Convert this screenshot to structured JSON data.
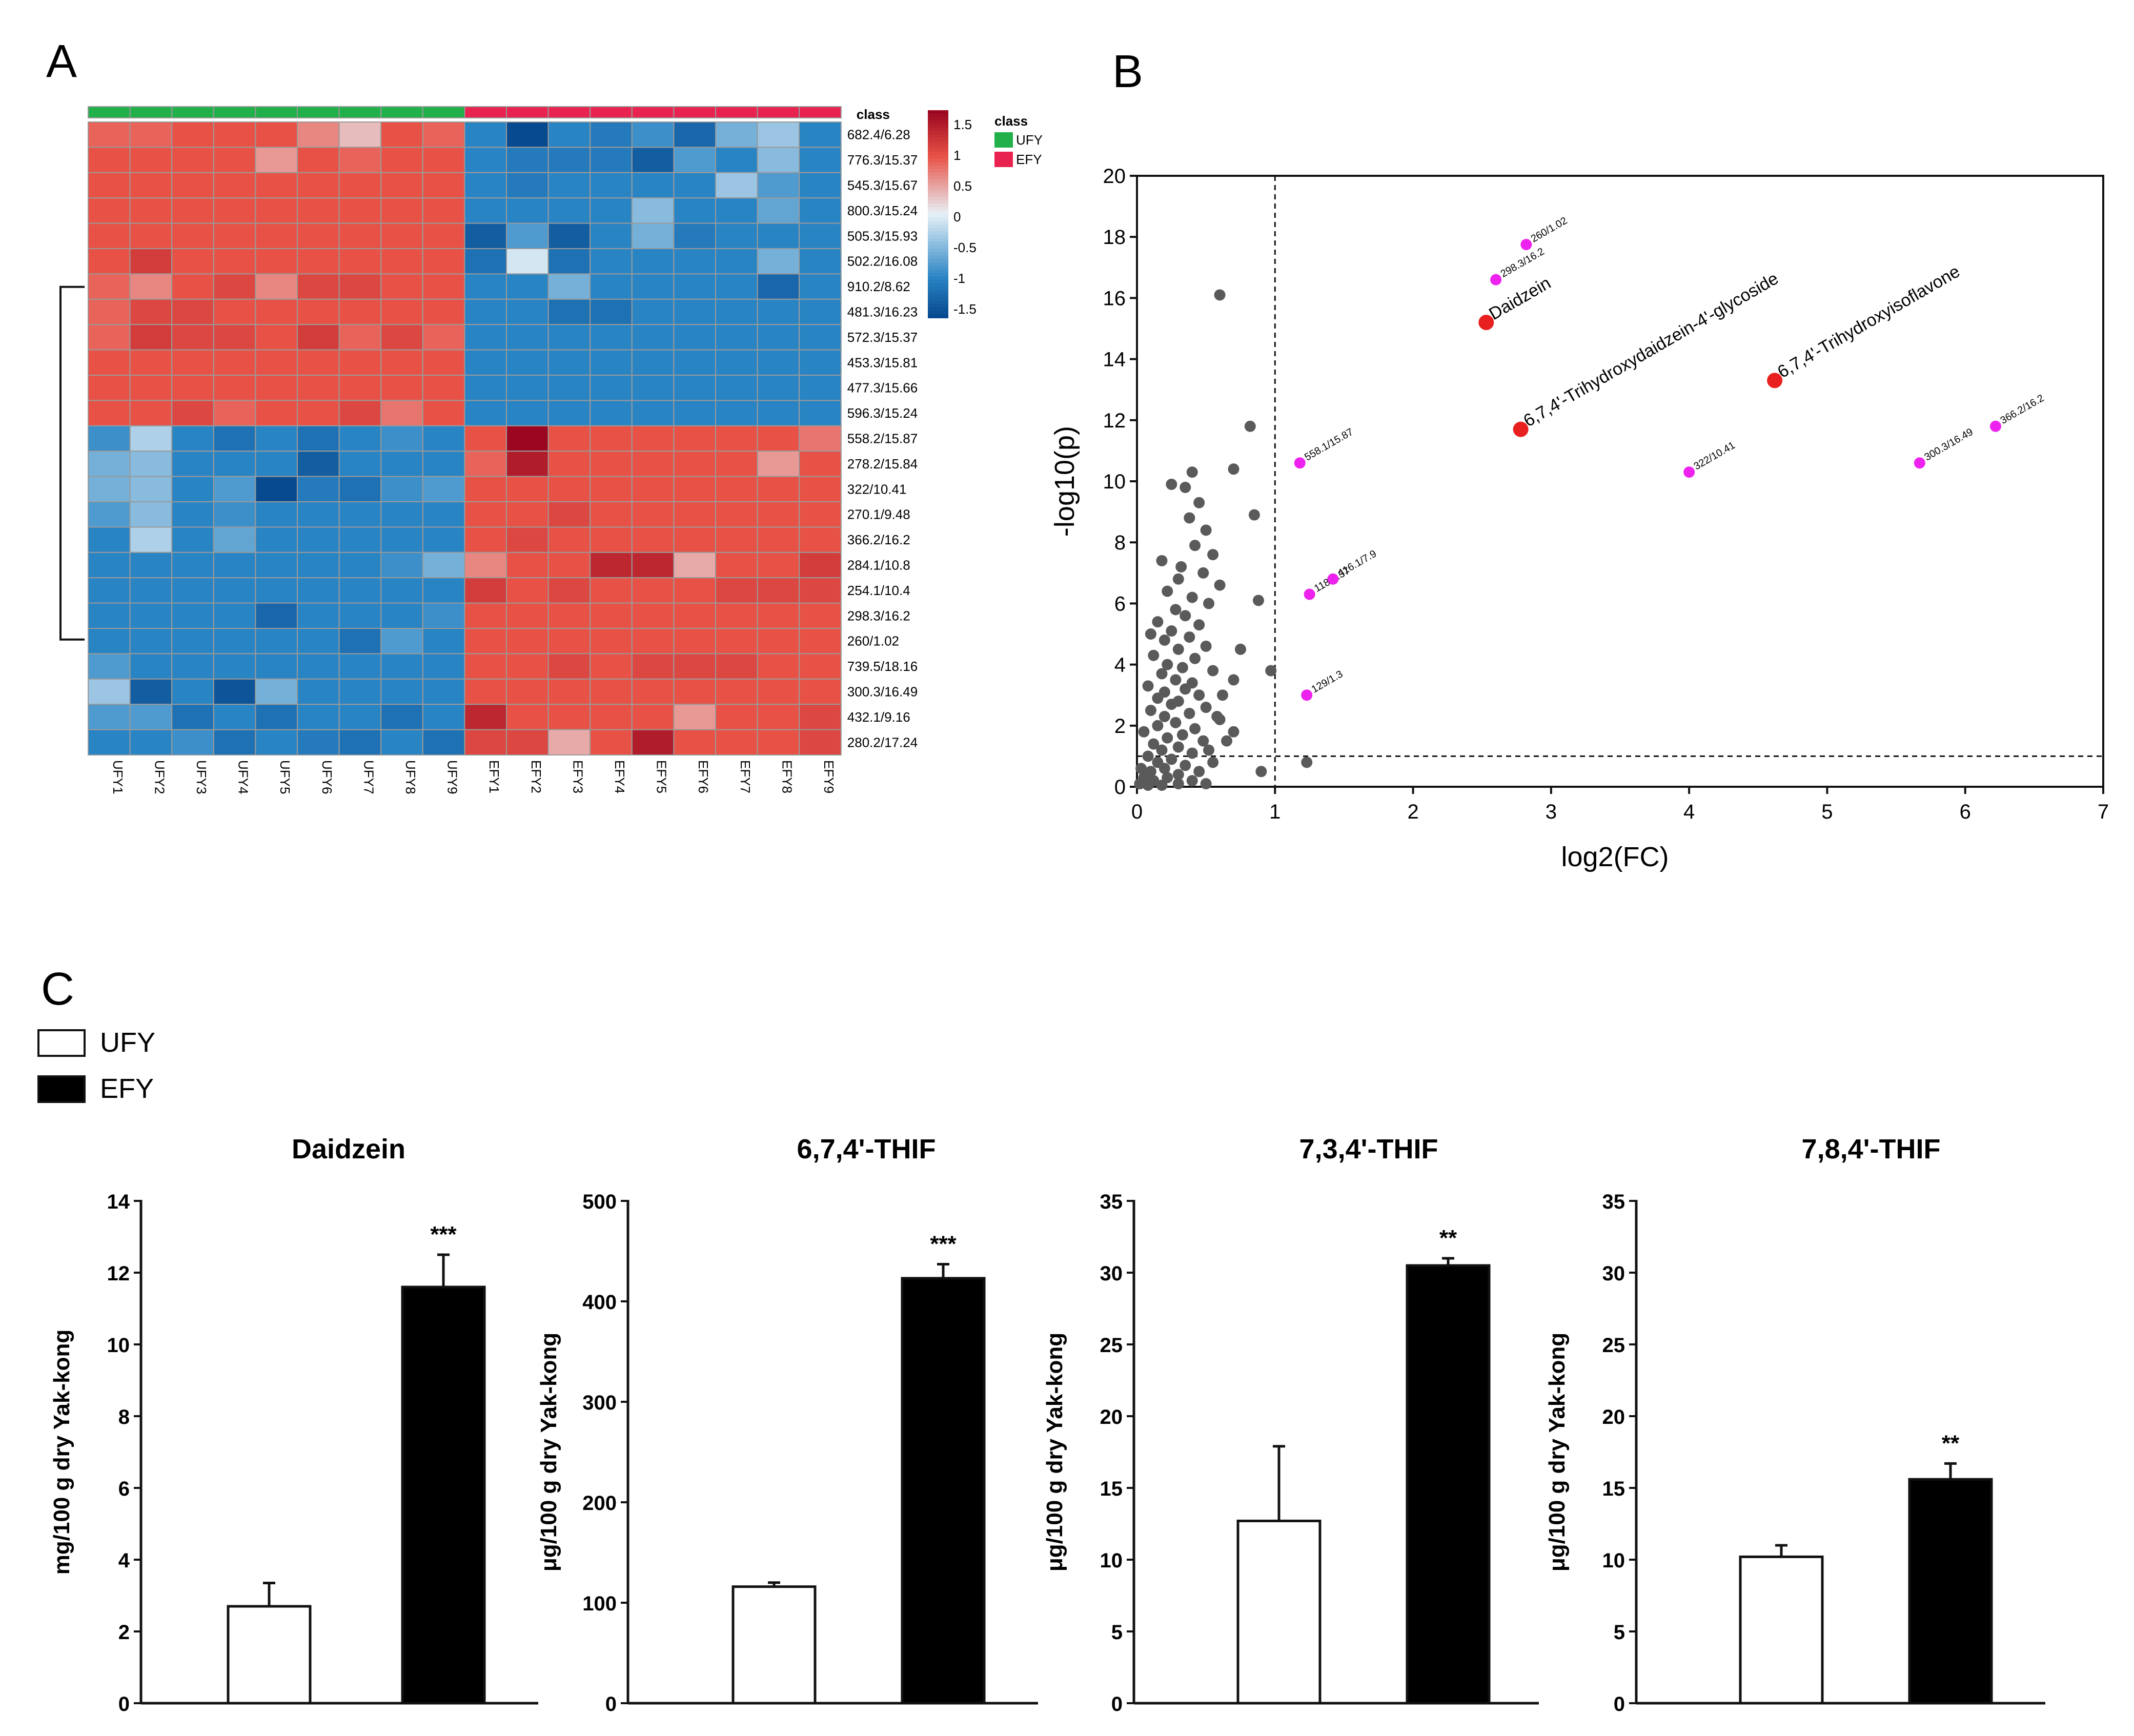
{
  "panels": {
    "a": "A",
    "b": "B",
    "c": "C"
  },
  "colors": {
    "ufy": "#22b04a",
    "efy": "#e8234f",
    "heat_low": "#084a8f",
    "heat_mid": "#e7f1f7",
    "heat_high": "#9b0720",
    "volcano_grey": "#5a5a5a",
    "volcano_magenta": "#ee22ee",
    "volcano_red": "#e8201f"
  },
  "chart_data": [
    {
      "type": "heatmap",
      "panel": "A",
      "class_label": "class",
      "legend_title": "class",
      "legend_items": [
        "UFY",
        "EFY"
      ],
      "colorbar_ticks": [
        "1.5",
        "1",
        "0.5",
        "0",
        "-0.5",
        "-1",
        "-1.5"
      ],
      "columns": [
        "UFY1",
        "UFY2",
        "UFY3",
        "UFY4",
        "UFY5",
        "UFY6",
        "UFY7",
        "UFY8",
        "UFY9",
        "EFY1",
        "EFY2",
        "EFY3",
        "EFY4",
        "EFY5",
        "EFY6",
        "EFY7",
        "EFY8",
        "EFY9"
      ],
      "column_class": [
        "UFY",
        "UFY",
        "UFY",
        "UFY",
        "UFY",
        "UFY",
        "UFY",
        "UFY",
        "UFY",
        "EFY",
        "EFY",
        "EFY",
        "EFY",
        "EFY",
        "EFY",
        "EFY",
        "EFY",
        "EFY"
      ],
      "rows": [
        "682.4/6.28",
        "776.3/15.37",
        "545.3/15.67",
        "800.3/15.24",
        "505.3/15.93",
        "502.2/16.08",
        "910.2/8.62",
        "481.3/16.23",
        "572.3/15.37",
        "453.3/15.81",
        "477.3/15.66",
        "596.3/15.24",
        "558.2/15.87",
        "278.2/15.84",
        "322/10.41",
        "270.1/9.48",
        "366.2/16.2",
        "284.1/10.8",
        "254.1/10.4",
        "298.3/16.2",
        "260/1.02",
        "739.5/18.16",
        "300.3/16.49",
        "432.1/9.16",
        "280.2/17.24"
      ],
      "values": [
        [
          0.8,
          0.8,
          0.9,
          0.9,
          0.9,
          0.6,
          0.3,
          0.9,
          0.8,
          -1.0,
          -1.6,
          -1.0,
          -1.1,
          -0.9,
          -1.3,
          -0.6,
          -0.4,
          -1.0
        ],
        [
          0.9,
          0.9,
          0.9,
          0.9,
          0.5,
          0.9,
          0.8,
          0.9,
          0.9,
          -1.0,
          -1.1,
          -1.1,
          -1.1,
          -1.4,
          -0.8,
          -1.0,
          -0.5,
          -1.0
        ],
        [
          0.9,
          0.9,
          0.9,
          0.9,
          0.9,
          0.9,
          0.9,
          0.9,
          0.9,
          -1.0,
          -1.1,
          -1.0,
          -1.0,
          -1.0,
          -1.0,
          -0.4,
          -0.8,
          -1.0
        ],
        [
          0.9,
          0.9,
          0.9,
          0.9,
          0.9,
          0.9,
          0.9,
          0.9,
          0.9,
          -1.0,
          -1.0,
          -1.0,
          -1.0,
          -0.5,
          -1.0,
          -1.0,
          -0.7,
          -1.0
        ],
        [
          0.9,
          0.9,
          0.9,
          0.9,
          0.9,
          0.9,
          0.9,
          0.9,
          0.9,
          -1.4,
          -0.8,
          -1.4,
          -1.0,
          -0.6,
          -1.1,
          -1.0,
          -1.0,
          -1.0
        ],
        [
          0.9,
          1.1,
          0.9,
          0.9,
          0.9,
          0.9,
          0.9,
          0.9,
          0.9,
          -1.2,
          -0.1,
          -1.2,
          -1.0,
          -1.0,
          -1.0,
          -1.0,
          -0.6,
          -1.0
        ],
        [
          0.8,
          0.6,
          0.9,
          1.0,
          0.6,
          1.0,
          1.0,
          0.9,
          0.9,
          -1.0,
          -1.0,
          -0.6,
          -1.0,
          -1.0,
          -1.0,
          -1.0,
          -1.3,
          -1.0
        ],
        [
          0.8,
          1.0,
          1.0,
          0.9,
          0.9,
          0.9,
          0.9,
          0.9,
          0.9,
          -1.0,
          -1.0,
          -1.2,
          -1.2,
          -1.0,
          -1.0,
          -1.0,
          -1.0,
          -1.0
        ],
        [
          0.8,
          1.1,
          1.0,
          1.0,
          0.9,
          1.1,
          0.8,
          1.0,
          0.8,
          -1.0,
          -1.0,
          -1.0,
          -1.0,
          -1.0,
          -1.0,
          -1.0,
          -1.0,
          -1.0
        ],
        [
          0.9,
          0.9,
          0.9,
          0.9,
          0.9,
          0.9,
          0.9,
          0.9,
          0.9,
          -1.0,
          -1.0,
          -1.0,
          -1.0,
          -1.0,
          -1.0,
          -1.0,
          -1.0,
          -1.0
        ],
        [
          0.9,
          0.9,
          0.9,
          0.9,
          0.9,
          0.9,
          0.9,
          0.9,
          0.9,
          -1.0,
          -1.0,
          -1.0,
          -1.0,
          -1.0,
          -1.0,
          -1.0,
          -1.0,
          -1.0
        ],
        [
          0.9,
          0.9,
          1.0,
          0.8,
          0.9,
          0.9,
          1.0,
          0.7,
          0.9,
          -1.0,
          -1.0,
          -1.0,
          -1.0,
          -1.0,
          -1.0,
          -1.0,
          -1.0,
          -1.0
        ],
        [
          -0.9,
          -0.3,
          -1.0,
          -1.2,
          -1.0,
          -1.2,
          -1.0,
          -0.9,
          -1.0,
          0.9,
          1.6,
          0.9,
          0.9,
          0.9,
          0.9,
          0.9,
          0.9,
          0.7
        ],
        [
          -0.6,
          -0.5,
          -1.0,
          -1.0,
          -1.0,
          -1.4,
          -1.0,
          -1.0,
          -1.0,
          0.8,
          1.4,
          0.9,
          0.9,
          0.9,
          0.9,
          0.9,
          0.5,
          0.9
        ],
        [
          -0.6,
          -0.5,
          -1.0,
          -0.8,
          -1.6,
          -1.1,
          -1.2,
          -0.9,
          -0.8,
          0.9,
          0.9,
          0.9,
          0.9,
          0.9,
          0.9,
          0.9,
          0.9,
          0.9
        ],
        [
          -0.8,
          -0.5,
          -1.0,
          -0.9,
          -1.0,
          -1.0,
          -1.0,
          -1.0,
          -1.0,
          0.9,
          0.9,
          1.0,
          0.9,
          0.9,
          0.9,
          0.9,
          0.9,
          0.9
        ],
        [
          -1.0,
          -0.3,
          -1.0,
          -0.7,
          -1.0,
          -1.0,
          -1.0,
          -1.0,
          -1.0,
          0.9,
          1.0,
          0.9,
          0.9,
          0.9,
          0.9,
          0.9,
          0.9,
          0.9
        ],
        [
          -1.0,
          -1.0,
          -1.0,
          -1.0,
          -1.0,
          -1.0,
          -1.0,
          -0.9,
          -0.6,
          0.6,
          0.9,
          0.9,
          1.3,
          1.3,
          0.4,
          0.9,
          0.9,
          1.1
        ],
        [
          -1.0,
          -1.0,
          -1.0,
          -1.0,
          -1.0,
          -1.0,
          -1.0,
          -1.0,
          -1.0,
          1.1,
          0.9,
          1.0,
          0.9,
          0.9,
          0.9,
          1.0,
          1.0,
          1.0
        ],
        [
          -1.0,
          -1.0,
          -1.0,
          -1.0,
          -1.3,
          -1.0,
          -1.0,
          -1.0,
          -0.9,
          0.9,
          0.9,
          0.9,
          0.9,
          0.9,
          0.9,
          0.9,
          0.9,
          0.9
        ],
        [
          -1.0,
          -1.0,
          -1.0,
          -1.0,
          -1.0,
          -1.0,
          -1.2,
          -0.8,
          -1.0,
          0.9,
          0.9,
          0.9,
          0.9,
          0.9,
          0.9,
          0.9,
          0.9,
          0.9
        ],
        [
          -0.8,
          -1.0,
          -1.0,
          -1.0,
          -1.0,
          -1.0,
          -1.0,
          -1.0,
          -1.0,
          0.9,
          0.9,
          1.0,
          0.9,
          1.0,
          1.0,
          1.0,
          0.9,
          0.9
        ],
        [
          -0.4,
          -1.4,
          -1.0,
          -1.5,
          -0.6,
          -1.0,
          -1.0,
          -1.0,
          -1.0,
          0.9,
          0.9,
          0.9,
          0.9,
          0.9,
          0.9,
          0.9,
          0.9,
          0.9
        ],
        [
          -0.8,
          -0.8,
          -1.2,
          -1.0,
          -1.2,
          -1.0,
          -1.0,
          -1.2,
          -1.0,
          1.3,
          0.9,
          0.9,
          0.9,
          0.9,
          0.5,
          0.9,
          0.9,
          1.0
        ],
        [
          -1.0,
          -1.0,
          -0.9,
          -1.2,
          -1.0,
          -1.1,
          -1.2,
          -1.0,
          -1.2,
          1.0,
          1.0,
          0.4,
          0.9,
          1.4,
          0.9,
          0.9,
          0.9,
          1.0
        ]
      ]
    },
    {
      "type": "scatter",
      "panel": "B",
      "xlabel": "log2(FC)",
      "ylabel": "-log10(p)",
      "xlim": [
        0,
        7
      ],
      "ylim": [
        0,
        20
      ],
      "xticks": [
        "0",
        "1",
        "2",
        "3",
        "4",
        "5",
        "6",
        "7"
      ],
      "yticks": [
        "0",
        "2",
        "4",
        "6",
        "8",
        "10",
        "12",
        "14",
        "16",
        "18",
        "20"
      ],
      "thresholds": {
        "x": 1,
        "y": 1
      },
      "grey_points": [
        [
          0.6,
          16.1
        ],
        [
          0.82,
          11.8
        ],
        [
          0.7,
          10.4
        ],
        [
          0.85,
          8.9
        ],
        [
          0.88,
          6.1
        ],
        [
          0.97,
          3.8
        ],
        [
          0.7,
          3.5
        ],
        [
          1.23,
          0.8
        ],
        [
          0.4,
          10.3
        ],
        [
          0.35,
          9.8
        ],
        [
          0.25,
          9.9
        ],
        [
          0.45,
          9.3
        ],
        [
          0.38,
          8.8
        ],
        [
          0.5,
          8.4
        ],
        [
          0.42,
          7.9
        ],
        [
          0.55,
          7.6
        ],
        [
          0.18,
          7.4
        ],
        [
          0.32,
          7.2
        ],
        [
          0.48,
          7.0
        ],
        [
          0.3,
          6.8
        ],
        [
          0.6,
          6.6
        ],
        [
          0.22,
          6.4
        ],
        [
          0.4,
          6.2
        ],
        [
          0.52,
          6.0
        ],
        [
          0.28,
          5.8
        ],
        [
          0.35,
          5.6
        ],
        [
          0.15,
          5.4
        ],
        [
          0.45,
          5.3
        ],
        [
          0.25,
          5.1
        ],
        [
          0.1,
          5.0
        ],
        [
          0.38,
          4.9
        ],
        [
          0.2,
          4.8
        ],
        [
          0.5,
          4.6
        ],
        [
          0.3,
          4.5
        ],
        [
          0.12,
          4.3
        ],
        [
          0.42,
          4.2
        ],
        [
          0.22,
          4.0
        ],
        [
          0.33,
          3.9
        ],
        [
          0.55,
          3.8
        ],
        [
          0.18,
          3.7
        ],
        [
          0.28,
          3.5
        ],
        [
          0.4,
          3.4
        ],
        [
          0.08,
          3.3
        ],
        [
          0.35,
          3.2
        ],
        [
          0.2,
          3.1
        ],
        [
          0.45,
          3.0
        ],
        [
          0.15,
          2.9
        ],
        [
          0.3,
          2.8
        ],
        [
          0.25,
          2.7
        ],
        [
          0.5,
          2.6
        ],
        [
          0.1,
          2.5
        ],
        [
          0.38,
          2.4
        ],
        [
          0.2,
          2.3
        ],
        [
          0.6,
          2.2
        ],
        [
          0.28,
          2.1
        ],
        [
          0.15,
          2.0
        ],
        [
          0.42,
          1.9
        ],
        [
          0.05,
          1.8
        ],
        [
          0.33,
          1.7
        ],
        [
          0.22,
          1.6
        ],
        [
          0.48,
          1.5
        ],
        [
          0.12,
          1.4
        ],
        [
          0.3,
          1.3
        ],
        [
          0.18,
          1.2
        ],
        [
          0.4,
          1.1
        ],
        [
          0.08,
          1.0
        ],
        [
          0.25,
          0.9
        ],
        [
          0.55,
          0.8
        ],
        [
          0.15,
          0.8
        ],
        [
          0.35,
          0.7
        ],
        [
          0.03,
          0.6
        ],
        [
          0.2,
          0.6
        ],
        [
          0.45,
          0.5
        ],
        [
          0.1,
          0.5
        ],
        [
          0.3,
          0.4
        ],
        [
          0.05,
          0.3
        ],
        [
          0.22,
          0.3
        ],
        [
          0.4,
          0.2
        ],
        [
          0.12,
          0.2
        ],
        [
          0.02,
          0.1
        ],
        [
          0.3,
          0.1
        ],
        [
          0.18,
          0.05
        ],
        [
          0.5,
          0.1
        ],
        [
          0.08,
          0.05
        ],
        [
          0.65,
          1.5
        ],
        [
          0.58,
          2.3
        ],
        [
          0.62,
          3.0
        ],
        [
          0.7,
          1.8
        ],
        [
          0.52,
          1.2
        ],
        [
          0.75,
          4.5
        ],
        [
          0.9,
          0.5
        ]
      ],
      "highlight_points": [
        {
          "x": 2.82,
          "y": 17.75,
          "label": "260/1.02",
          "color": "magenta"
        },
        {
          "x": 2.6,
          "y": 16.6,
          "label": "298.3/16.2",
          "color": "magenta"
        },
        {
          "x": 2.53,
          "y": 15.2,
          "label": "Daidzein",
          "color": "red"
        },
        {
          "x": 4.62,
          "y": 13.3,
          "label": "6,7,4'-Trihydroxyisoflavone",
          "color": "red"
        },
        {
          "x": 2.78,
          "y": 11.7,
          "label": "6,7,4'-Trihydroxydaidzein-4'-glycoside",
          "color": "red"
        },
        {
          "x": 1.18,
          "y": 10.6,
          "label": "558.1/15.87",
          "color": "magenta"
        },
        {
          "x": 6.22,
          "y": 11.8,
          "label": "366.2/16.2",
          "color": "magenta"
        },
        {
          "x": 5.67,
          "y": 10.6,
          "label": "300.3/16.49",
          "color": "magenta"
        },
        {
          "x": 4.0,
          "y": 10.3,
          "label": "322/10.41",
          "color": "magenta"
        },
        {
          "x": 1.25,
          "y": 6.3,
          "label": "118/1.37",
          "color": "magenta"
        },
        {
          "x": 1.42,
          "y": 6.8,
          "label": "416.1/7.9",
          "color": "magenta"
        },
        {
          "x": 1.23,
          "y": 3.0,
          "label": "129/1.3",
          "color": "magenta"
        }
      ]
    },
    {
      "type": "bar",
      "panel": "C",
      "legend": [
        "UFY",
        "EFY"
      ],
      "subplots": [
        {
          "title": "Daidzein",
          "ylabel": "mg/100 g dry Yak-kong",
          "ylim": [
            0,
            14
          ],
          "yticks": [
            "0",
            "2",
            "4",
            "6",
            "8",
            "10",
            "12",
            "14"
          ],
          "values": [
            2.7,
            11.6
          ],
          "errors": [
            0.65,
            0.9
          ],
          "significance": "***"
        },
        {
          "title": "6,7,4'-THIF",
          "ylabel": "μg/100 g dry Yak-kong",
          "ylim": [
            0,
            500
          ],
          "yticks": [
            "0",
            "100",
            "200",
            "300",
            "400",
            "500"
          ],
          "values": [
            116,
            423
          ],
          "errors": [
            4,
            14
          ],
          "significance": "***"
        },
        {
          "title": "7,3,4'-THIF",
          "ylabel": "μg/100 g dry Yak-kong",
          "ylim": [
            0,
            35
          ],
          "yticks": [
            "0",
            "5",
            "10",
            "15",
            "20",
            "25",
            "30",
            "35"
          ],
          "values": [
            12.7,
            30.5
          ],
          "errors": [
            5.2,
            0.5
          ],
          "significance": "**"
        },
        {
          "title": "7,8,4'-THIF",
          "ylabel": "μg/100 g dry Yak-kong",
          "ylim": [
            0,
            35
          ],
          "yticks": [
            "0",
            "5",
            "10",
            "15",
            "20",
            "25",
            "30",
            "35"
          ],
          "values": [
            10.2,
            15.6
          ],
          "errors": [
            0.8,
            1.1
          ],
          "significance": "**"
        }
      ]
    }
  ]
}
